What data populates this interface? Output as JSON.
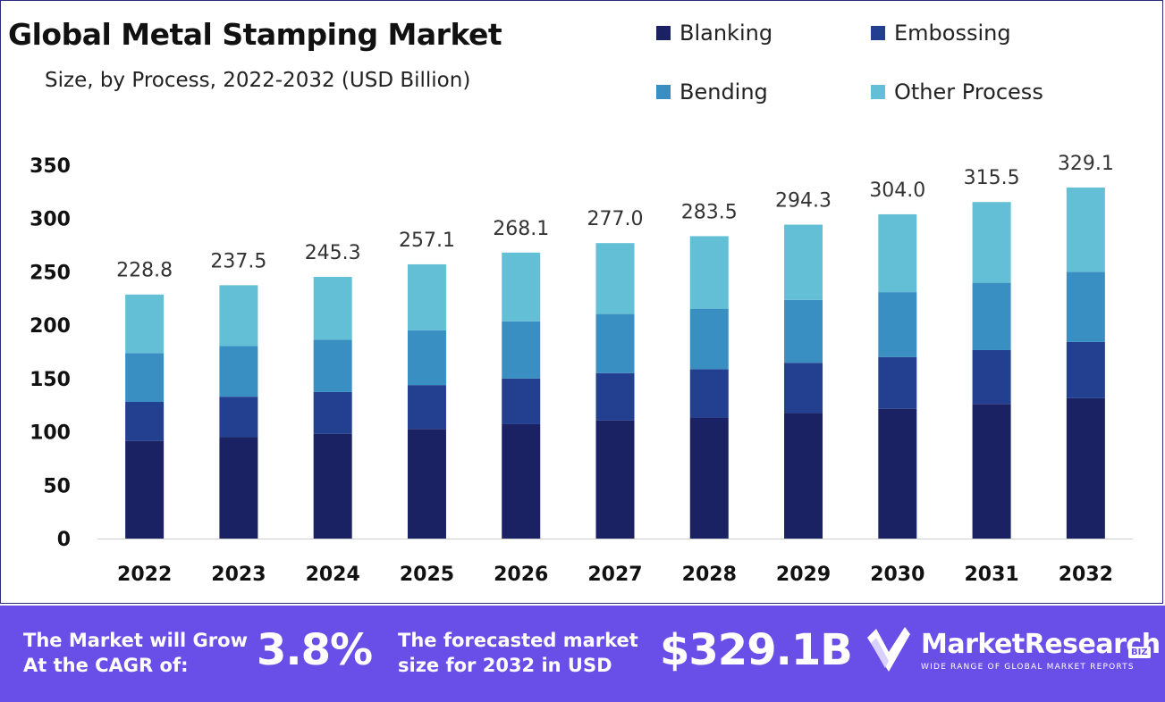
{
  "header": {
    "title": "Global Metal Stamping Market",
    "subtitle": "Size, by Process, 2022-2032 (USD Billion)"
  },
  "colors": {
    "blanking": "#1b2264",
    "embossing": "#233f8f",
    "bending": "#3a8fc2",
    "other": "#62bfd6",
    "banner": "#6a4ee8"
  },
  "chart_data": {
    "type": "bar",
    "stacked": true,
    "categories": [
      "2022",
      "2023",
      "2024",
      "2025",
      "2026",
      "2027",
      "2028",
      "2029",
      "2030",
      "2031",
      "2032"
    ],
    "series": [
      {
        "name": "Blanking",
        "values": [
          91.5,
          95.0,
          98.1,
          102.8,
          107.2,
          110.8,
          113.4,
          117.7,
          121.6,
          126.2,
          131.6
        ]
      },
      {
        "name": "Embossing",
        "values": [
          36.6,
          38.0,
          39.3,
          41.1,
          42.9,
          44.3,
          45.4,
          47.1,
          48.6,
          50.5,
          52.7
        ]
      },
      {
        "name": "Bending",
        "values": [
          45.8,
          47.5,
          49.1,
          51.4,
          53.6,
          55.4,
          56.7,
          58.9,
          60.8,
          63.1,
          65.8
        ]
      },
      {
        "name": "Other Process",
        "values": [
          54.9,
          57.0,
          58.8,
          61.8,
          64.4,
          66.5,
          68.0,
          70.6,
          73.0,
          75.7,
          79.0
        ]
      }
    ],
    "totals": [
      "228.8",
      "237.5",
      "245.3",
      "257.1",
      "268.1",
      "277.0",
      "283.5",
      "294.3",
      "304.0",
      "315.5",
      "329.1"
    ],
    "y_ticks": [
      0,
      50,
      100,
      150,
      200,
      250,
      300,
      350
    ],
    "ylim": [
      0,
      350
    ],
    "grid": false,
    "legend_position": "top-right"
  },
  "legend": [
    {
      "label": "Blanking",
      "color": "#1b2264"
    },
    {
      "label": "Embossing",
      "color": "#233f8f"
    },
    {
      "label": "Bending",
      "color": "#3a8fc2"
    },
    {
      "label": "Other Process",
      "color": "#62bfd6"
    }
  ],
  "banner": {
    "cagr_text_1": "The Market will Grow",
    "cagr_text_2": "At the CAGR of:",
    "cagr_value": "3.8%",
    "forecast_text_1": "The forecasted market",
    "forecast_text_2": "size for 2032 in USD",
    "forecast_value": "$329.1B",
    "logo_name": "MarketResearch",
    "logo_badge": "BIZ",
    "logo_tagline": "WIDE RANGE OF GLOBAL MARKET REPORTS",
    "logo_icon": "checkmark-logo-icon"
  }
}
